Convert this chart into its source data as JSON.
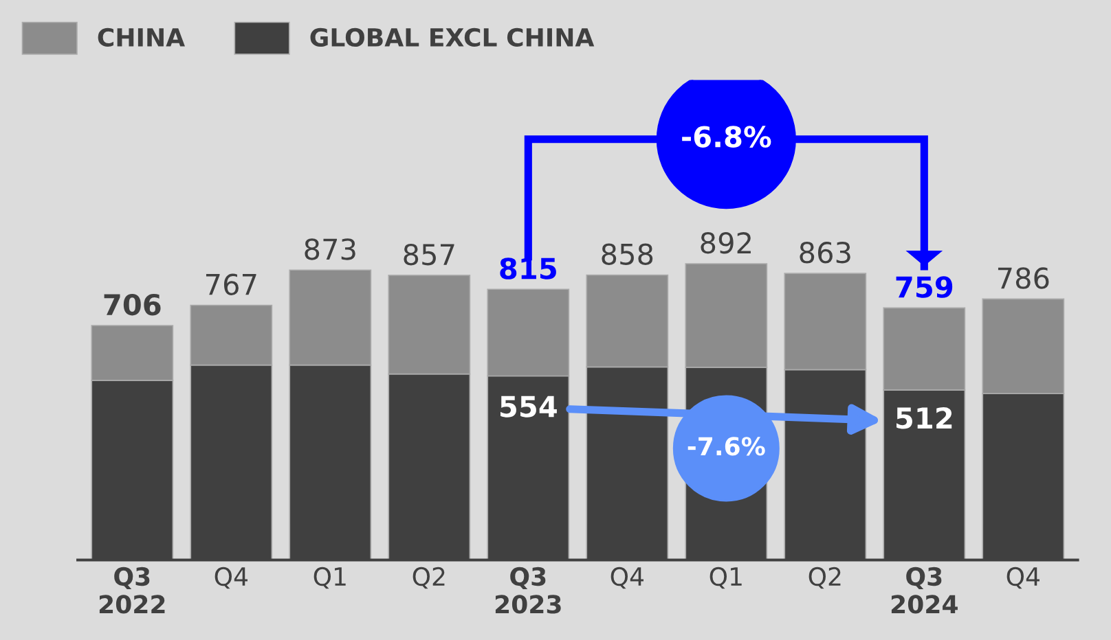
{
  "chart_data": {
    "type": "bar",
    "stacked": true,
    "categories": [
      "Q3\n2022",
      "Q4",
      "Q1",
      "Q2",
      "Q3\n2023",
      "Q4",
      "Q1",
      "Q2",
      "Q3\n2024",
      "Q4"
    ],
    "series": [
      {
        "name": "GLOBAL EXCL CHINA",
        "color": "#404040",
        "values": [
          541,
          587,
          587,
          560,
          554,
          581,
          580,
          573,
          512,
          501
        ],
        "value_labels": [
          null,
          null,
          null,
          null,
          "554",
          null,
          null,
          null,
          "512",
          null
        ]
      },
      {
        "name": "CHINA",
        "color": "#8c8c8c",
        "values": [
          165,
          180,
          286,
          297,
          261,
          277,
          312,
          290,
          247,
          285
        ]
      }
    ],
    "totals": [
      "706",
      "767",
      "873",
      "857",
      "815",
      "858",
      "892",
      "863",
      "759",
      "786"
    ],
    "annotations": [
      "-6.8%",
      "-7.6%"
    ],
    "legend": "top left",
    "grid": false
  }
}
